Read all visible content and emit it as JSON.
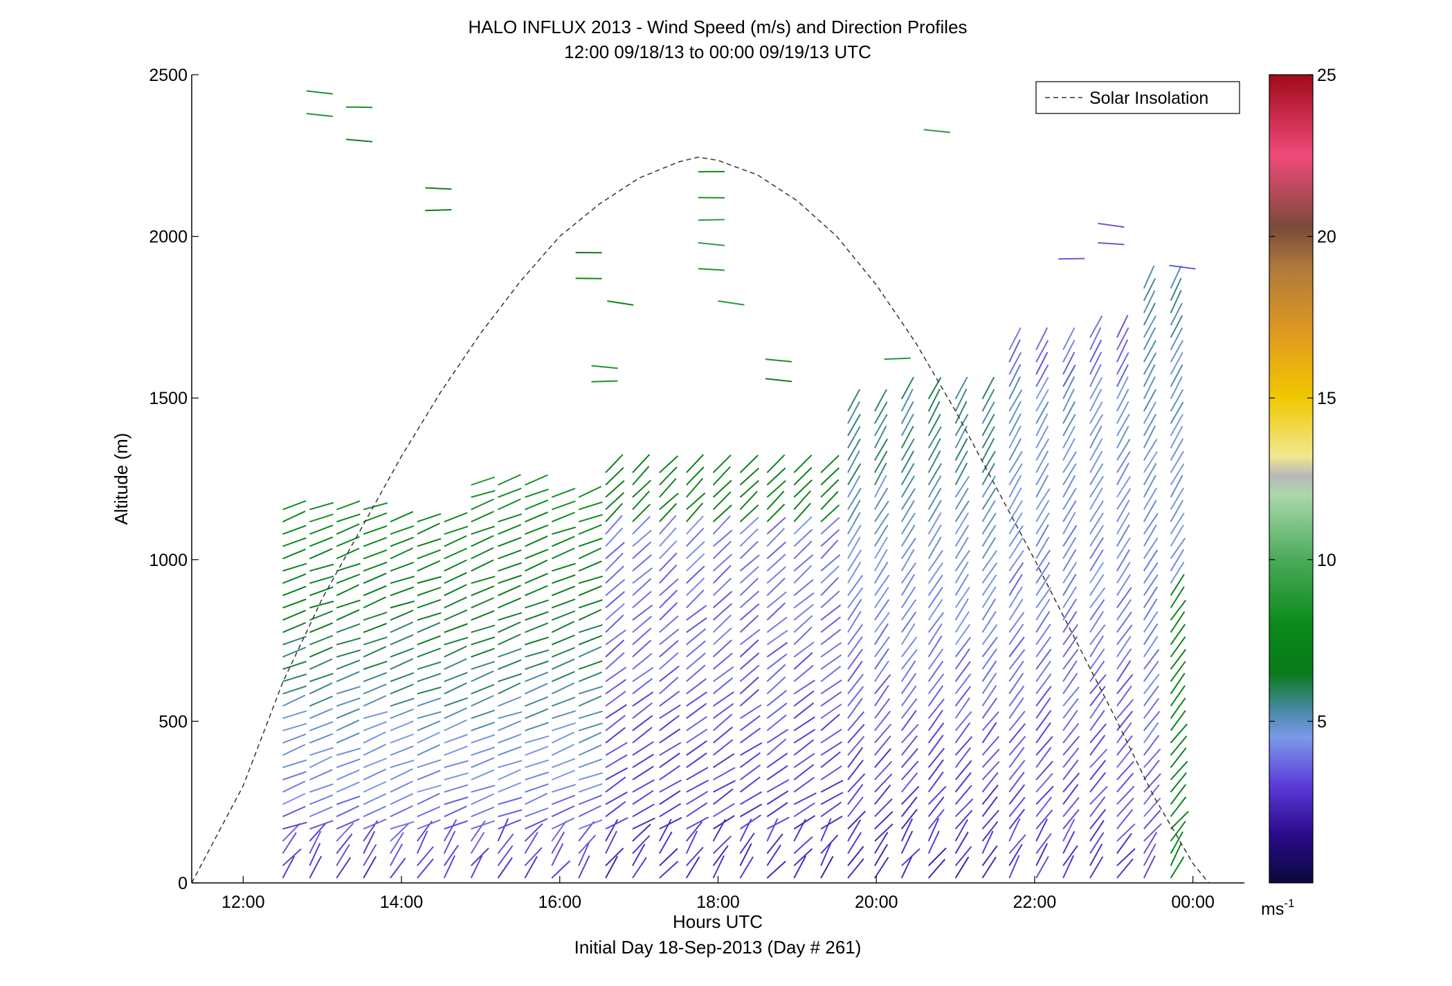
{
  "chart_data": {
    "type": "scatter",
    "title": "HALO INFLUX 2013 - Wind Speed (m/s) and Direction Profiles",
    "subtitle": "12:00 09/18/13 to 00:00 09/19/13  UTC",
    "xlabel": "Hours UTC",
    "xlabel_sub": "Initial Day 18-Sep-2013 (Day # 261)",
    "ylabel": "Altitude (m)",
    "xlim": [
      11.35,
      24.65
    ],
    "ylim": [
      0,
      2500
    ],
    "x_ticks": [
      12,
      14,
      16,
      18,
      20,
      22,
      24
    ],
    "x_tick_labels": [
      "12:00",
      "14:00",
      "16:00",
      "18:00",
      "20:00",
      "22:00",
      "00:00"
    ],
    "y_ticks": [
      0,
      500,
      1000,
      1500,
      2000,
      2500
    ],
    "y_tick_labels": [
      "0",
      "500",
      "1000",
      "1500",
      "2000",
      "2500"
    ],
    "legend": {
      "entries": [
        "Solar Insolation"
      ],
      "position": "top-right"
    },
    "colorbar": {
      "range": [
        0,
        25
      ],
      "ticks": [
        5,
        10,
        15,
        20,
        25
      ],
      "tick_labels": [
        "5",
        "10",
        "15",
        "20",
        "25"
      ],
      "unit_label": "ms",
      "unit_exponent": "-1",
      "stops": [
        {
          "v": 0,
          "c": "#0a0a3c"
        },
        {
          "v": 1.5,
          "c": "#2a0a8a"
        },
        {
          "v": 3,
          "c": "#5a3ad8"
        },
        {
          "v": 4.5,
          "c": "#7a9ae8"
        },
        {
          "v": 5.3,
          "c": "#4a8aaa"
        },
        {
          "v": 6.5,
          "c": "#0a7a1a"
        },
        {
          "v": 8,
          "c": "#0a8a1a"
        },
        {
          "v": 10,
          "c": "#4aaa5a"
        },
        {
          "v": 12,
          "c": "#aad8aa"
        },
        {
          "v": 12.6,
          "c": "#b8b8b8"
        },
        {
          "v": 13.2,
          "c": "#f0e890"
        },
        {
          "v": 15,
          "c": "#f0c800"
        },
        {
          "v": 17,
          "c": "#e09a20"
        },
        {
          "v": 19,
          "c": "#b07a3a"
        },
        {
          "v": 20.3,
          "c": "#7a4a3a"
        },
        {
          "v": 22.5,
          "c": "#f04a7a"
        },
        {
          "v": 25,
          "c": "#a00a1a"
        }
      ]
    },
    "series": [
      {
        "name": "Solar Insolation",
        "type": "line",
        "x": [
          11.35,
          12.0,
          12.5,
          13.0,
          13.5,
          14.0,
          14.5,
          15.0,
          15.5,
          16.0,
          16.5,
          17.0,
          17.5,
          17.75,
          18.0,
          18.5,
          19.0,
          19.5,
          20.0,
          20.5,
          21.0,
          21.5,
          22.0,
          22.5,
          23.0,
          23.5,
          24.0,
          24.2
        ],
        "y": [
          0,
          300,
          620,
          880,
          1100,
          1320,
          1520,
          1700,
          1860,
          2000,
          2100,
          2180,
          2230,
          2245,
          2235,
          2190,
          2110,
          2000,
          1850,
          1670,
          1460,
          1230,
          1000,
          760,
          520,
          270,
          60,
          0
        ]
      },
      {
        "name": "wind barbs",
        "type": "barbs",
        "x_start": 12.5,
        "x_end": 23.9,
        "x_step": 0.34,
        "y_step": 38,
        "value_note": "schematic sampling of wind speed (m/s) and direction versus altitude"
      }
    ]
  }
}
